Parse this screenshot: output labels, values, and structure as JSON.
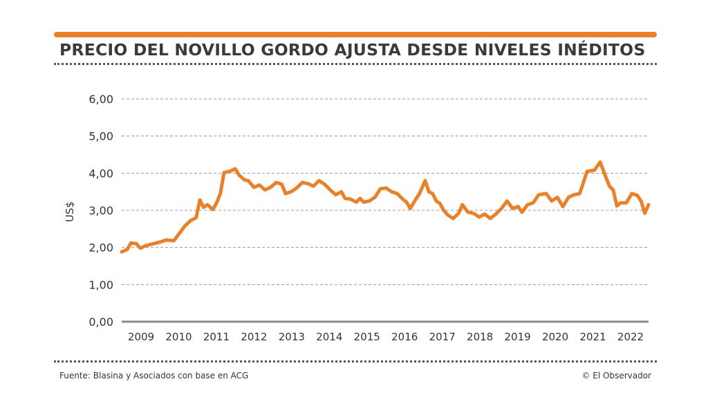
{
  "header": {
    "title": "PRECIO DEL NOVILLO GORDO AJUSTA DESDE NIVELES INÉDITOS"
  },
  "footer": {
    "source": "Fuente: Blasina y Asociados con base en ACG",
    "credit": "© El Observador"
  },
  "colors": {
    "accent": "#e8822a",
    "line": "#e8822a",
    "axis": "#888888",
    "grid": "#9a9a9a",
    "text": "#333333"
  },
  "chart_data": {
    "type": "line",
    "title": "PRECIO DEL NOVILLO GORDO AJUSTA DESDE NIVELES INÉDITOS",
    "ylabel": "US$",
    "xlabel": "",
    "ylim": [
      0,
      6
    ],
    "xlim": [
      2008.6,
      2022.75
    ],
    "yticks": [
      0,
      1,
      2,
      3,
      4,
      5,
      6
    ],
    "ytick_labels": [
      "0,00",
      "1,00",
      "2,00",
      "3,00",
      "4,00",
      "5,00",
      "6,00"
    ],
    "xtick_labels": [
      "2009",
      "2010",
      "2011",
      "2012",
      "2013",
      "2014",
      "2015",
      "2016",
      "2017",
      "2018",
      "2019",
      "2020",
      "2021",
      "2022"
    ],
    "grid": true,
    "series": [
      {
        "name": "",
        "points": [
          [
            2008.6,
            1.88
          ],
          [
            2008.75,
            1.95
          ],
          [
            2008.85,
            2.12
          ],
          [
            2009.0,
            2.1
          ],
          [
            2009.1,
            1.98
          ],
          [
            2009.25,
            2.05
          ],
          [
            2009.45,
            2.1
          ],
          [
            2009.65,
            2.15
          ],
          [
            2009.8,
            2.2
          ],
          [
            2010.0,
            2.18
          ],
          [
            2010.15,
            2.38
          ],
          [
            2010.3,
            2.58
          ],
          [
            2010.45,
            2.72
          ],
          [
            2010.6,
            2.8
          ],
          [
            2010.7,
            3.28
          ],
          [
            2010.8,
            3.08
          ],
          [
            2010.9,
            3.15
          ],
          [
            2011.05,
            3.02
          ],
          [
            2011.15,
            3.2
          ],
          [
            2011.25,
            3.45
          ],
          [
            2011.35,
            4.02
          ],
          [
            2011.5,
            4.05
          ],
          [
            2011.65,
            4.12
          ],
          [
            2011.75,
            3.95
          ],
          [
            2011.9,
            3.82
          ],
          [
            2012.0,
            3.8
          ],
          [
            2012.15,
            3.62
          ],
          [
            2012.3,
            3.68
          ],
          [
            2012.45,
            3.55
          ],
          [
            2012.6,
            3.62
          ],
          [
            2012.75,
            3.75
          ],
          [
            2012.9,
            3.7
          ],
          [
            2013.0,
            3.45
          ],
          [
            2013.15,
            3.5
          ],
          [
            2013.3,
            3.6
          ],
          [
            2013.45,
            3.75
          ],
          [
            2013.6,
            3.72
          ],
          [
            2013.75,
            3.65
          ],
          [
            2013.9,
            3.8
          ],
          [
            2014.05,
            3.7
          ],
          [
            2014.2,
            3.55
          ],
          [
            2014.35,
            3.42
          ],
          [
            2014.5,
            3.5
          ],
          [
            2014.6,
            3.32
          ],
          [
            2014.75,
            3.3
          ],
          [
            2014.9,
            3.22
          ],
          [
            2015.0,
            3.32
          ],
          [
            2015.1,
            3.22
          ],
          [
            2015.25,
            3.25
          ],
          [
            2015.4,
            3.35
          ],
          [
            2015.55,
            3.58
          ],
          [
            2015.7,
            3.6
          ],
          [
            2015.85,
            3.5
          ],
          [
            2016.0,
            3.45
          ],
          [
            2016.15,
            3.3
          ],
          [
            2016.25,
            3.22
          ],
          [
            2016.35,
            3.05
          ],
          [
            2016.5,
            3.3
          ],
          [
            2016.6,
            3.45
          ],
          [
            2016.75,
            3.8
          ],
          [
            2016.85,
            3.5
          ],
          [
            2016.95,
            3.45
          ],
          [
            2017.05,
            3.25
          ],
          [
            2017.15,
            3.18
          ],
          [
            2017.25,
            3.0
          ],
          [
            2017.35,
            2.88
          ],
          [
            2017.5,
            2.78
          ],
          [
            2017.65,
            2.92
          ],
          [
            2017.75,
            3.15
          ],
          [
            2017.9,
            2.95
          ],
          [
            2018.05,
            2.92
          ],
          [
            2018.2,
            2.82
          ],
          [
            2018.35,
            2.9
          ],
          [
            2018.5,
            2.78
          ],
          [
            2018.65,
            2.9
          ],
          [
            2018.8,
            3.05
          ],
          [
            2018.95,
            3.25
          ],
          [
            2019.1,
            3.05
          ],
          [
            2019.25,
            3.1
          ],
          [
            2019.35,
            2.95
          ],
          [
            2019.5,
            3.15
          ],
          [
            2019.65,
            3.2
          ],
          [
            2019.8,
            3.42
          ],
          [
            2020.0,
            3.45
          ],
          [
            2020.15,
            3.25
          ],
          [
            2020.3,
            3.35
          ],
          [
            2020.45,
            3.1
          ],
          [
            2020.6,
            3.35
          ],
          [
            2020.75,
            3.42
          ],
          [
            2020.9,
            3.45
          ],
          [
            2021.1,
            4.05
          ],
          [
            2021.3,
            4.08
          ],
          [
            2021.45,
            4.3
          ],
          [
            2021.6,
            3.9
          ],
          [
            2021.7,
            3.65
          ],
          [
            2021.8,
            3.55
          ],
          [
            2021.9,
            3.12
          ],
          [
            2022.0,
            3.2
          ],
          [
            2022.15,
            3.2
          ],
          [
            2022.3,
            3.45
          ],
          [
            2022.45,
            3.4
          ],
          [
            2022.55,
            3.25
          ],
          [
            2022.65,
            2.92
          ],
          [
            2022.75,
            3.15
          ]
        ]
      }
    ]
  }
}
